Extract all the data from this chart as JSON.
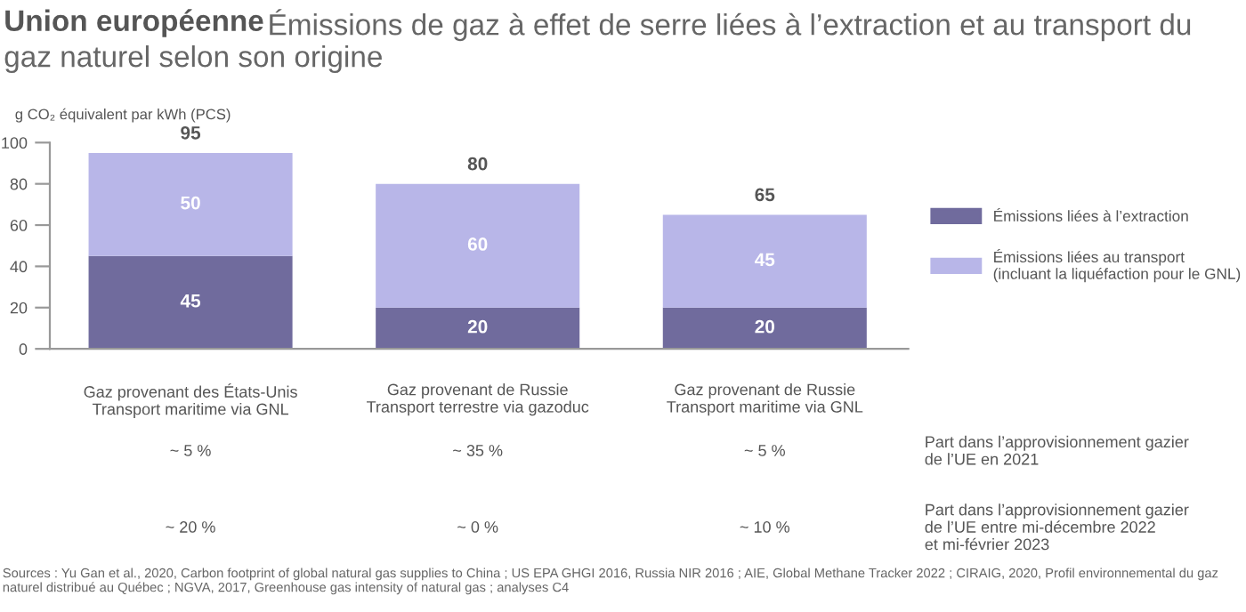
{
  "chart_data": {
    "type": "bar",
    "stacked": true,
    "title": "Union européenne",
    "subtitle": "Émissions de gaz à effet de serre liées à l’extraction et au transport du gaz naturel selon son origine",
    "ylabel": "g CO₂ équivalent par kWh (PCS)",
    "categories": [
      "Gaz provenant des États-Unis\nTransport maritime via GNL",
      "Gaz provenant de Russie\nTransport terrestre via gazoduc",
      "Gaz provenant de Russie\nTransport maritime via GNL"
    ],
    "series": [
      {
        "name": "Émissions liées à l’extraction",
        "color": "#706b9d",
        "values": [
          45,
          20,
          20
        ]
      },
      {
        "name": "Émissions liées au transport\n(incluant la liquéfaction pour le GNL)",
        "color": "#b8b6e8",
        "values": [
          50,
          60,
          45
        ]
      }
    ],
    "totals": [
      "95",
      "80",
      "65"
    ],
    "data_labels": true,
    "ylim": [
      0,
      100
    ],
    "yticks": [
      0,
      20,
      40,
      60,
      80,
      100
    ],
    "grid": false,
    "legend": "right",
    "annotations": [
      "~ 5 %",
      "~ 35 %",
      "~ 5 %",
      "Part dans l’approvisionnement gazier\nde l’UE en 2021",
      "~ 20 %",
      "~ 0 %",
      "~ 10 %",
      "Part dans l’approvisionnement gazier\nde l’UE entre mi-décembre 2022\net mi-février 2023",
      "Sources : Yu Gan et al., 2020, Carbon footprint of global natural gas supplies to China ; US EPA GHGI 2016, Russia NIR 2016 ; AIE, Global Methane Tracker 2022 ; CIRAIG, 2020, Profil environnemental du gaz naturel distribué au Québec ; NGVA, 2017, Greenhouse gas intensity of natural gas ; analyses C4"
    ]
  }
}
